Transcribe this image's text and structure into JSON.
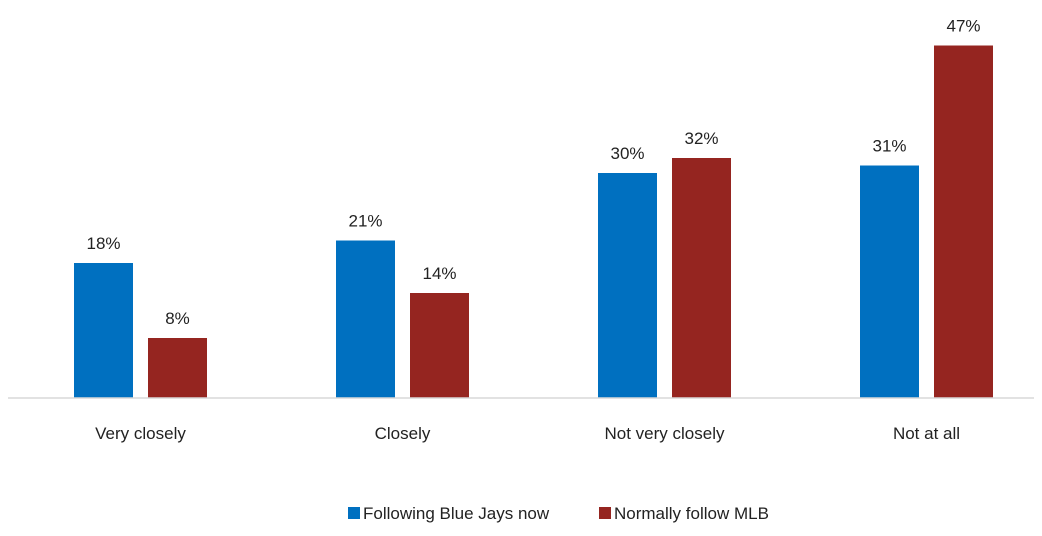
{
  "chart_data": {
    "type": "bar",
    "categories": [
      "Very closely",
      "Closely",
      "Not very closely",
      "Not at all"
    ],
    "series": [
      {
        "name": "Following Blue Jays now",
        "values": [
          18,
          21,
          30,
          31
        ],
        "labels": [
          "18%",
          "21%",
          "30%",
          "31%"
        ],
        "color": "#0070C0"
      },
      {
        "name": "Normally follow MLB",
        "values": [
          8,
          14,
          32,
          47
        ],
        "labels": [
          "8%",
          "14%",
          "32%",
          "47%"
        ],
        "color": "#952520"
      }
    ],
    "title": "",
    "xlabel": "",
    "ylabel": "",
    "ylim": [
      0,
      47
    ],
    "grid": false,
    "legend_position": "bottom"
  }
}
